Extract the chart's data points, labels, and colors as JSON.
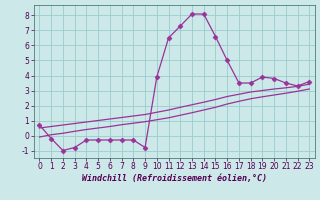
{
  "x": [
    0,
    1,
    2,
    3,
    4,
    5,
    6,
    7,
    8,
    9,
    10,
    11,
    12,
    13,
    14,
    15,
    16,
    17,
    18,
    19,
    20,
    21,
    22,
    23
  ],
  "y_main": [
    0.7,
    -0.2,
    -1.0,
    -0.8,
    -0.3,
    -0.3,
    -0.3,
    -0.3,
    -0.3,
    -0.8,
    3.9,
    6.5,
    7.3,
    8.1,
    8.1,
    6.6,
    5.0,
    3.5,
    3.5,
    3.9,
    3.8,
    3.5,
    3.3,
    3.6
  ],
  "y_line1": [
    -0.1,
    0.05,
    0.15,
    0.28,
    0.4,
    0.5,
    0.6,
    0.72,
    0.82,
    0.92,
    1.05,
    1.18,
    1.35,
    1.52,
    1.7,
    1.88,
    2.1,
    2.28,
    2.45,
    2.58,
    2.7,
    2.82,
    2.95,
    3.1
  ],
  "y_line2": [
    0.5,
    0.6,
    0.7,
    0.8,
    0.9,
    1.0,
    1.1,
    1.2,
    1.3,
    1.4,
    1.55,
    1.7,
    1.88,
    2.05,
    2.22,
    2.4,
    2.6,
    2.75,
    2.9,
    3.0,
    3.1,
    3.18,
    3.28,
    3.42
  ],
  "color": "#993399",
  "bg_color": "#cce8e8",
  "grid_color": "#99cccc",
  "xlabel": "Windchill (Refroidissement éolien,°C)",
  "xlim": [
    -0.5,
    23.5
  ],
  "ylim": [
    -1.5,
    8.7
  ],
  "yticks": [
    -1,
    0,
    1,
    2,
    3,
    4,
    5,
    6,
    7,
    8
  ],
  "xticks": [
    0,
    1,
    2,
    3,
    4,
    5,
    6,
    7,
    8,
    9,
    10,
    11,
    12,
    13,
    14,
    15,
    16,
    17,
    18,
    19,
    20,
    21,
    22,
    23
  ],
  "marker": "D",
  "markersize": 2.5,
  "linewidth": 0.9,
  "tick_fontsize": 5.5,
  "xlabel_fontsize": 6.0
}
